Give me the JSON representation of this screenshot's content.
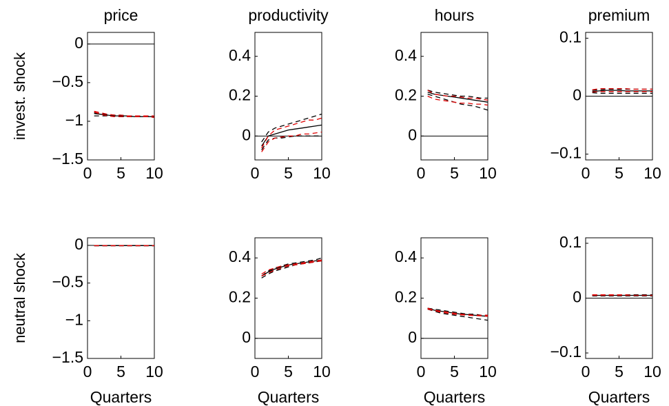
{
  "chart_data": [
    {
      "type": "line",
      "title": "price",
      "ylabel": "invest. shock",
      "x": [
        1,
        2,
        3,
        4,
        5,
        6,
        7,
        8,
        9,
        10
      ],
      "xlim": [
        0,
        10
      ],
      "xticks": [
        0,
        5,
        10
      ],
      "ylim": [
        -1.5,
        0.15
      ],
      "yticks": [
        {
          "value": -1.5,
          "label": "−1.5"
        },
        {
          "value": -1,
          "label": "−1"
        },
        {
          "value": -0.5,
          "label": "−0.5"
        },
        0
      ],
      "hline": 0,
      "series": [
        {
          "color": "#000000",
          "dash": false,
          "values": [
            -0.9,
            -0.91,
            -0.92,
            -0.93,
            -0.93,
            -0.93,
            -0.94,
            -0.94,
            -0.94,
            -0.94
          ]
        },
        {
          "color": "#000000",
          "dash": true,
          "values": [
            -0.93,
            -0.93,
            -0.93,
            -0.93,
            -0.94,
            -0.94,
            -0.94,
            -0.94,
            -0.94,
            -0.95
          ]
        },
        {
          "color": "#000000",
          "dash": true,
          "values": [
            -0.89,
            -0.9,
            -0.91,
            -0.92,
            -0.92,
            -0.93,
            -0.93,
            -0.93,
            -0.93,
            -0.93
          ]
        },
        {
          "color": "#e00000",
          "dash": true,
          "values": [
            -0.87,
            -0.89,
            -0.91,
            -0.92,
            -0.92,
            -0.93,
            -0.93,
            -0.93,
            -0.93,
            -0.93
          ]
        },
        {
          "color": "#e00000",
          "dash": true,
          "values": [
            -0.88,
            -0.91,
            -0.93,
            -0.94,
            -0.94,
            -0.94,
            -0.94,
            -0.94,
            -0.94,
            -0.95
          ]
        }
      ]
    },
    {
      "type": "line",
      "title": "productivity",
      "x": [
        1,
        2,
        3,
        4,
        5,
        6,
        7,
        8,
        9,
        10
      ],
      "xlim": [
        0,
        10
      ],
      "xticks": [
        0,
        5,
        10
      ],
      "ylim": [
        -0.12,
        0.52
      ],
      "yticks": [
        0,
        0.2,
        0.4
      ],
      "hline": 0,
      "series": [
        {
          "color": "#000000",
          "dash": false,
          "values": [
            -0.05,
            0,
            0.01,
            0.02,
            0.03,
            0.035,
            0.04,
            0.045,
            0.05,
            0.055
          ]
        },
        {
          "color": "#000000",
          "dash": true,
          "values": [
            -0.03,
            0.02,
            0.04,
            0.05,
            0.06,
            0.07,
            0.08,
            0.09,
            0.1,
            0.11
          ]
        },
        {
          "color": "#000000",
          "dash": true,
          "values": [
            -0.07,
            -0.02,
            -0.01,
            -0.01,
            -0.005,
            0,
            0,
            0,
            0,
            0
          ]
        },
        {
          "color": "#e00000",
          "dash": true,
          "values": [
            -0.06,
            0,
            0.03,
            0.04,
            0.05,
            0.06,
            0.07,
            0.08,
            0.08,
            0.09
          ]
        },
        {
          "color": "#e00000",
          "dash": true,
          "values": [
            -0.08,
            -0.03,
            -0.01,
            -0.005,
            0,
            0,
            0.01,
            0.01,
            0.015,
            0.02
          ]
        }
      ]
    },
    {
      "type": "line",
      "title": "hours",
      "x": [
        1,
        2,
        3,
        4,
        5,
        6,
        7,
        8,
        9,
        10
      ],
      "xlim": [
        0,
        10
      ],
      "xticks": [
        0,
        5,
        10
      ],
      "ylim": [
        -0.12,
        0.52
      ],
      "yticks": [
        0,
        0.2,
        0.4
      ],
      "hline": 0,
      "series": [
        {
          "color": "#000000",
          "dash": false,
          "values": [
            0.22,
            0.21,
            0.205,
            0.2,
            0.195,
            0.19,
            0.185,
            0.18,
            0.175,
            0.17
          ]
        },
        {
          "color": "#000000",
          "dash": true,
          "values": [
            0.21,
            0.2,
            0.19,
            0.18,
            0.17,
            0.16,
            0.155,
            0.15,
            0.14,
            0.13
          ]
        },
        {
          "color": "#000000",
          "dash": true,
          "values": [
            0.23,
            0.22,
            0.215,
            0.21,
            0.205,
            0.2,
            0.2,
            0.195,
            0.19,
            0.19
          ]
        },
        {
          "color": "#e00000",
          "dash": true,
          "values": [
            0.23,
            0.21,
            0.205,
            0.2,
            0.2,
            0.195,
            0.19,
            0.19,
            0.185,
            0.18
          ]
        },
        {
          "color": "#e00000",
          "dash": true,
          "values": [
            0.2,
            0.185,
            0.18,
            0.175,
            0.17,
            0.165,
            0.165,
            0.16,
            0.16,
            0.155
          ]
        }
      ]
    },
    {
      "type": "line",
      "title": "premium",
      "x": [
        1,
        2,
        3,
        4,
        5,
        6,
        7,
        8,
        9,
        10
      ],
      "xlim": [
        0,
        10
      ],
      "xticks": [
        0,
        5,
        10
      ],
      "ylim": [
        -0.11,
        0.11
      ],
      "yticks": [
        {
          "value": -0.1,
          "label": "−0.1"
        },
        0,
        0.1
      ],
      "hline": 0,
      "series": [
        {
          "color": "#000000",
          "dash": false,
          "values": [
            0.008,
            0.009,
            0.01,
            0.01,
            0.01,
            0.009,
            0.009,
            0.009,
            0.009,
            0.009
          ]
        },
        {
          "color": "#000000",
          "dash": true,
          "values": [
            0.006,
            0.005,
            0.005,
            0.005,
            0.005,
            0.005,
            0.005,
            0.005,
            0.005,
            0.005
          ]
        },
        {
          "color": "#000000",
          "dash": true,
          "values": [
            0.01,
            0.011,
            0.012,
            0.012,
            0.012,
            0.012,
            0.012,
            0.012,
            0.012,
            0.012
          ]
        },
        {
          "color": "#e00000",
          "dash": true,
          "values": [
            0.011,
            0.013,
            0.013,
            0.013,
            0.013,
            0.013,
            0.012,
            0.012,
            0.012,
            0.012
          ]
        },
        {
          "color": "#e00000",
          "dash": true,
          "values": [
            0.007,
            0.008,
            0.008,
            0.008,
            0.008,
            0.008,
            0.008,
            0.008,
            0.008,
            0.008
          ]
        }
      ]
    },
    {
      "type": "line",
      "ylabel": "neutral shock",
      "xlabel": "Quarters",
      "x": [
        1,
        2,
        3,
        4,
        5,
        6,
        7,
        8,
        9,
        10
      ],
      "xlim": [
        0,
        10
      ],
      "xticks": [
        0,
        5,
        10
      ],
      "ylim": [
        -1.5,
        0.1
      ],
      "yticks": [
        {
          "value": -1.5,
          "label": "−1.5"
        },
        {
          "value": -1,
          "label": "−1"
        },
        {
          "value": -0.5,
          "label": "−0.5"
        },
        0
      ],
      "hline": 0,
      "series": [
        {
          "color": "#000000",
          "dash": false,
          "values": [
            -0.004,
            -0.004,
            -0.004,
            -0.004,
            -0.004,
            -0.004,
            -0.004,
            -0.004,
            -0.004,
            -0.004
          ]
        },
        {
          "color": "#000000",
          "dash": true,
          "values": [
            -0.006,
            -0.006,
            -0.006,
            -0.006,
            -0.006,
            -0.006,
            -0.006,
            -0.006,
            -0.006,
            -0.006
          ]
        },
        {
          "color": "#000000",
          "dash": true,
          "values": [
            -0.002,
            -0.002,
            -0.002,
            -0.002,
            -0.002,
            -0.002,
            -0.002,
            -0.002,
            -0.002,
            -0.002
          ]
        },
        {
          "color": "#e00000",
          "dash": true,
          "values": [
            -0.003,
            -0.003,
            -0.003,
            -0.003,
            -0.003,
            -0.003,
            -0.003,
            -0.003,
            -0.003,
            -0.003
          ]
        },
        {
          "color": "#e00000",
          "dash": true,
          "values": [
            -0.005,
            -0.005,
            -0.005,
            -0.005,
            -0.005,
            -0.005,
            -0.005,
            -0.005,
            -0.005,
            -0.005
          ]
        }
      ]
    },
    {
      "type": "line",
      "xlabel": "Quarters",
      "x": [
        1,
        2,
        3,
        4,
        5,
        6,
        7,
        8,
        9,
        10
      ],
      "xlim": [
        0,
        10
      ],
      "xticks": [
        0,
        5,
        10
      ],
      "ylim": [
        -0.1,
        0.5
      ],
      "yticks": [
        0,
        0.2,
        0.4
      ],
      "hline": 0,
      "series": [
        {
          "color": "#000000",
          "dash": false,
          "values": [
            0.31,
            0.33,
            0.345,
            0.355,
            0.365,
            0.37,
            0.375,
            0.38,
            0.385,
            0.39
          ]
        },
        {
          "color": "#000000",
          "dash": true,
          "values": [
            0.3,
            0.32,
            0.335,
            0.345,
            0.355,
            0.365,
            0.37,
            0.375,
            0.38,
            0.385
          ]
        },
        {
          "color": "#000000",
          "dash": true,
          "values": [
            0.31,
            0.335,
            0.35,
            0.36,
            0.37,
            0.375,
            0.38,
            0.385,
            0.39,
            0.4
          ]
        },
        {
          "color": "#e00000",
          "dash": true,
          "values": [
            0.32,
            0.34,
            0.35,
            0.36,
            0.365,
            0.37,
            0.375,
            0.38,
            0.385,
            0.39
          ]
        },
        {
          "color": "#e00000",
          "dash": true,
          "values": [
            0.31,
            0.325,
            0.34,
            0.35,
            0.36,
            0.365,
            0.37,
            0.375,
            0.38,
            0.385
          ]
        }
      ]
    },
    {
      "type": "line",
      "xlabel": "Quarters",
      "x": [
        1,
        2,
        3,
        4,
        5,
        6,
        7,
        8,
        9,
        10
      ],
      "xlim": [
        0,
        10
      ],
      "xticks": [
        0,
        5,
        10
      ],
      "ylim": [
        -0.1,
        0.5
      ],
      "yticks": [
        0,
        0.2,
        0.4
      ],
      "hline": 0,
      "series": [
        {
          "color": "#000000",
          "dash": false,
          "values": [
            0.15,
            0.14,
            0.135,
            0.13,
            0.125,
            0.12,
            0.118,
            0.115,
            0.112,
            0.11
          ]
        },
        {
          "color": "#000000",
          "dash": true,
          "values": [
            0.145,
            0.135,
            0.125,
            0.12,
            0.115,
            0.11,
            0.105,
            0.1,
            0.095,
            0.09
          ]
        },
        {
          "color": "#000000",
          "dash": true,
          "values": [
            0.15,
            0.145,
            0.14,
            0.135,
            0.13,
            0.125,
            0.12,
            0.12,
            0.115,
            0.115
          ]
        },
        {
          "color": "#e00000",
          "dash": true,
          "values": [
            0.15,
            0.14,
            0.135,
            0.13,
            0.125,
            0.12,
            0.118,
            0.115,
            0.115,
            0.115
          ]
        },
        {
          "color": "#e00000",
          "dash": true,
          "values": [
            0.145,
            0.138,
            0.13,
            0.125,
            0.12,
            0.117,
            0.115,
            0.113,
            0.112,
            0.11
          ]
        }
      ]
    },
    {
      "type": "line",
      "xlabel": "Quarters",
      "x": [
        1,
        2,
        3,
        4,
        5,
        6,
        7,
        8,
        9,
        10
      ],
      "xlim": [
        0,
        10
      ],
      "xticks": [
        0,
        5,
        10
      ],
      "ylim": [
        -0.11,
        0.11
      ],
      "yticks": [
        {
          "value": -0.1,
          "label": "−0.1"
        },
        0,
        0.1
      ],
      "hline": 0,
      "series": [
        {
          "color": "#000000",
          "dash": false,
          "values": [
            0.005,
            0.005,
            0.005,
            0.005,
            0.005,
            0.005,
            0.005,
            0.005,
            0.005,
            0.005
          ]
        },
        {
          "color": "#000000",
          "dash": true,
          "values": [
            0.004,
            0.004,
            0.004,
            0.004,
            0.004,
            0.004,
            0.004,
            0.004,
            0.004,
            0.004
          ]
        },
        {
          "color": "#000000",
          "dash": true,
          "values": [
            0.006,
            0.006,
            0.006,
            0.006,
            0.006,
            0.006,
            0.006,
            0.006,
            0.006,
            0.006
          ]
        },
        {
          "color": "#e00000",
          "dash": true,
          "values": [
            0.006,
            0.006,
            0.006,
            0.006,
            0.006,
            0.006,
            0.005,
            0.005,
            0.005,
            0.005
          ]
        },
        {
          "color": "#e00000",
          "dash": true,
          "values": [
            0.005,
            0.005,
            0.005,
            0.005,
            0.005,
            0.005,
            0.005,
            0.005,
            0.005,
            0.005
          ]
        }
      ]
    }
  ]
}
